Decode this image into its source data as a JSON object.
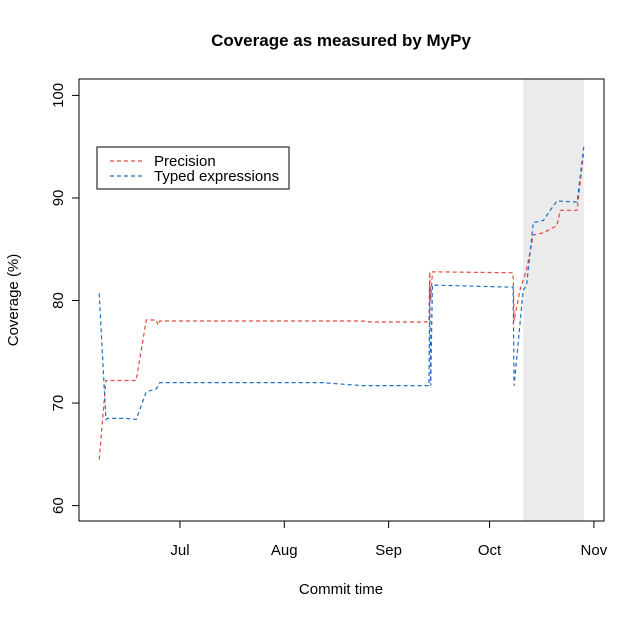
{
  "chart_data": {
    "type": "line",
    "title": "Coverage as measured by MyPy",
    "xlabel": "Commit time",
    "ylabel": "Coverage (%)",
    "xlim": [
      "06-01",
      "11-04"
    ],
    "ylim": [
      58.5,
      101.6
    ],
    "x_ticks": [
      {
        "date": "07-01",
        "label": "Jul"
      },
      {
        "date": "08-01",
        "label": "Aug"
      },
      {
        "date": "09-01",
        "label": "Sep"
      },
      {
        "date": "10-01",
        "label": "Oct"
      },
      {
        "date": "11-01",
        "label": "Nov"
      }
    ],
    "y_ticks": [
      60,
      70,
      80,
      90,
      100
    ],
    "grid": false,
    "legend_position": "top-left",
    "shaded_region": {
      "from": "10-11",
      "to": "10-29",
      "color": "#ebebeb"
    },
    "series": [
      {
        "name": "Precision",
        "color": "#e8473b",
        "style": "dashed",
        "points": [
          [
            "06-07",
            64.5
          ],
          [
            "06-09",
            72.2
          ],
          [
            "06-18",
            72.2
          ],
          [
            "06-21",
            78.1
          ],
          [
            "06-24",
            78.1
          ],
          [
            "06-24.5",
            77.6
          ],
          [
            "06-25",
            78.0
          ],
          [
            "08-24",
            78.0
          ],
          [
            "08-27",
            77.9
          ],
          [
            "09-13",
            77.9
          ],
          [
            "09-13.2",
            82.8
          ],
          [
            "09-13.5",
            80.0
          ],
          [
            "09-14",
            82.8
          ],
          [
            "10-08",
            82.7
          ],
          [
            "10-08.3",
            78.0
          ],
          [
            "10-10",
            81.0
          ],
          [
            "10-12",
            83.0
          ],
          [
            "10-14",
            86.4
          ],
          [
            "10-17",
            86.6
          ],
          [
            "10-21",
            87.3
          ],
          [
            "10-22",
            88.8
          ],
          [
            "10-27",
            88.8
          ],
          [
            "10-29",
            94.6
          ]
        ]
      },
      {
        "name": "Typed expressions",
        "color": "#1f6fc5",
        "style": "dashed",
        "points": [
          [
            "06-07",
            80.7
          ],
          [
            "06-09",
            68.4
          ],
          [
            "06-09.5",
            68.5
          ],
          [
            "06-15",
            68.5
          ],
          [
            "06-18",
            68.4
          ],
          [
            "06-21",
            71.1
          ],
          [
            "06-24",
            71.4
          ],
          [
            "06-25",
            72.0
          ],
          [
            "08-12",
            72.0
          ],
          [
            "08-24",
            71.7
          ],
          [
            "09-13",
            71.7
          ],
          [
            "09-13.2",
            81.5
          ],
          [
            "09-13.5",
            71.7
          ],
          [
            "09-14",
            81.5
          ],
          [
            "10-08",
            81.3
          ],
          [
            "10-08.3",
            71.7
          ],
          [
            "10-11",
            81.0
          ],
          [
            "10-12",
            81.5
          ],
          [
            "10-14",
            87.6
          ],
          [
            "10-17",
            87.8
          ],
          [
            "10-19",
            88.8
          ],
          [
            "10-21",
            89.7
          ],
          [
            "10-27",
            89.6
          ],
          [
            "10-29",
            95.0
          ]
        ]
      }
    ]
  }
}
